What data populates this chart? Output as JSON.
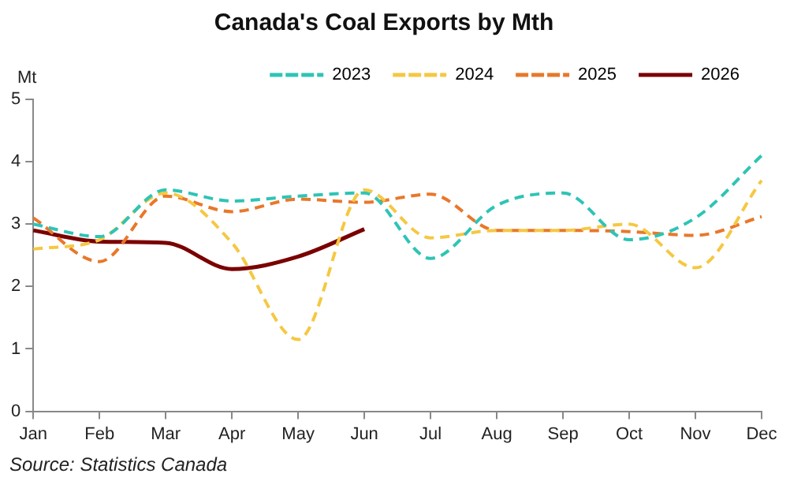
{
  "chart_data": {
    "type": "line",
    "title": "Canada's Coal Exports by Mth",
    "ylabel": "Mt",
    "categories": [
      "Jan",
      "Feb",
      "Mar",
      "Apr",
      "May",
      "Jun",
      "Jul",
      "Aug",
      "Sep",
      "Oct",
      "Nov",
      "Dec"
    ],
    "series": [
      {
        "name": "2023",
        "color": "#2ec4b6",
        "line_style": "dashed",
        "values": [
          3.0,
          2.8,
          3.55,
          3.37,
          3.45,
          3.5,
          2.45,
          3.3,
          3.5,
          2.75,
          3.1,
          4.1
        ]
      },
      {
        "name": "2024",
        "color": "#f5c842",
        "line_style": "dashed",
        "values": [
          2.6,
          2.75,
          3.5,
          2.7,
          1.15,
          3.55,
          2.78,
          2.9,
          2.9,
          3.0,
          2.3,
          3.7
        ]
      },
      {
        "name": "2025",
        "color": "#e8782a",
        "line_style": "dashed",
        "values": [
          3.1,
          2.4,
          3.45,
          3.2,
          3.4,
          3.35,
          3.48,
          2.9,
          2.9,
          2.88,
          2.82,
          3.12
        ]
      },
      {
        "name": "2026",
        "color": "#7b0000",
        "line_style": "solid",
        "values": [
          2.9,
          2.72,
          2.7,
          2.28,
          2.48,
          2.92,
          null,
          null,
          null,
          null,
          null,
          null
        ]
      }
    ],
    "ylim": [
      0,
      5
    ],
    "yticks": [
      0,
      1,
      2,
      3,
      4,
      5
    ],
    "grid": false,
    "legend": "top",
    "marker": "none",
    "annotations": [
      "Source: Statistics Canada"
    ]
  }
}
